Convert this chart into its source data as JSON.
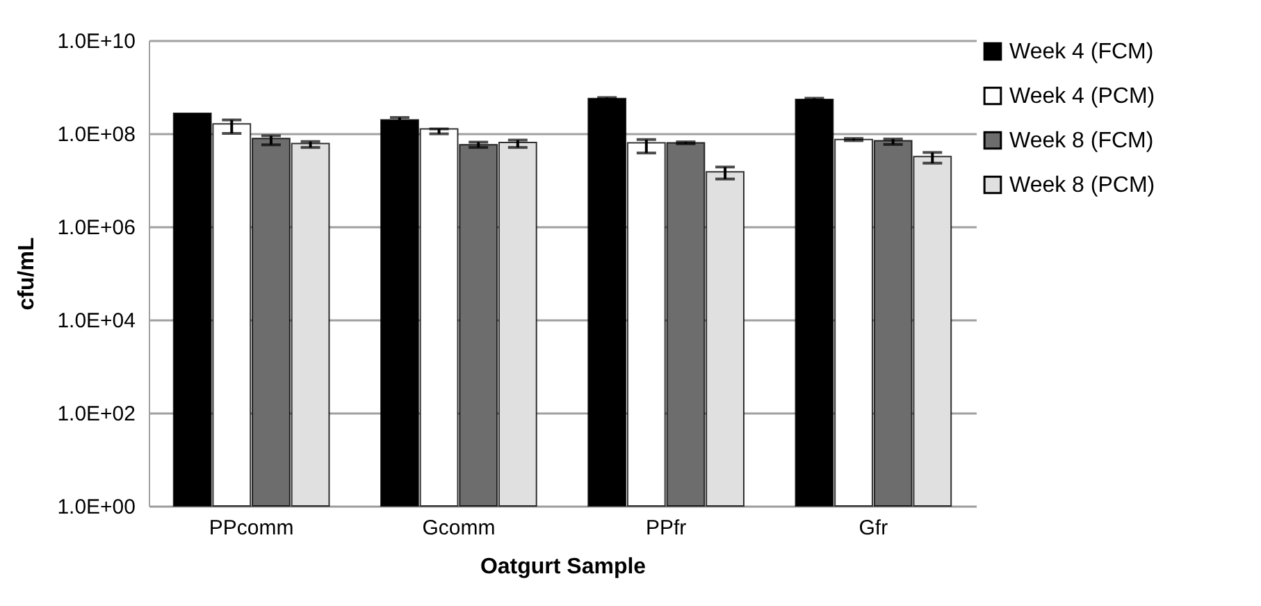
{
  "chart_data": {
    "type": "bar",
    "xlabel": "Oatgurt Sample",
    "ylabel": "cfu/mL",
    "categories": [
      "PPcomm",
      "Gcomm",
      "PPfr",
      "Gfr"
    ],
    "series": [
      {
        "name": "Week 4 (FCM)",
        "color": "#000000",
        "values": [
          270000000,
          195000000,
          560000000,
          540000000
        ],
        "errors": [
          null,
          [
            165000000,
            220000000
          ],
          [
            530000000,
            590000000
          ],
          [
            510000000,
            570000000
          ]
        ]
      },
      {
        "name": "Week 4 (PCM)",
        "color": "#ffffff",
        "values": [
          160000000,
          125000000,
          63000000,
          74000000
        ],
        "errors": [
          [
            100000000,
            195000000
          ],
          [
            98000000,
            125000000
          ],
          [
            38000000,
            74000000
          ],
          [
            70000000,
            78000000
          ]
        ]
      },
      {
        "name": "Week 8 (FCM)",
        "color": "#6d6d6d",
        "values": [
          78000000,
          57000000,
          63000000,
          70000000
        ],
        "errors": [
          [
            57000000,
            89000000
          ],
          [
            50000000,
            65000000
          ],
          [
            60000000,
            66000000
          ],
          [
            58000000,
            76000000
          ]
        ]
      },
      {
        "name": "Week 8 (PCM)",
        "color": "#e0e0e0",
        "values": [
          61000000,
          64000000,
          15000000,
          32000000
        ],
        "errors": [
          [
            50000000,
            67000000
          ],
          [
            50000000,
            72000000
          ],
          [
            10500000,
            19000000
          ],
          [
            23000000,
            39000000
          ]
        ]
      }
    ],
    "log": true,
    "ylim": [
      1,
      10000000000
    ],
    "yticks": [
      {
        "value": 1,
        "label": "1.0E+00"
      },
      {
        "value": 100,
        "label": "1.0E+02"
      },
      {
        "value": 10000,
        "label": "1.0E+04"
      },
      {
        "value": 1000000,
        "label": "1.0E+06"
      },
      {
        "value": 100000000,
        "label": "1.0E+08"
      },
      {
        "value": 10000000000,
        "label": "1.0E+10"
      }
    ],
    "grid": "y",
    "legend": "right"
  }
}
